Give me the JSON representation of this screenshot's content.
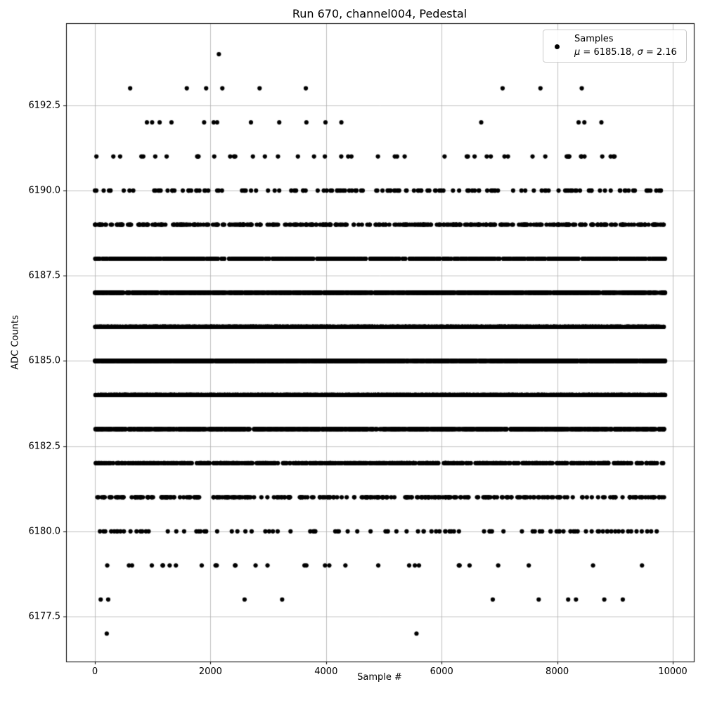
{
  "figure": {
    "title": "Run 670, channel004, Pedestal"
  },
  "axes": {
    "xlabel": "Sample #",
    "ylabel": "ADC Counts"
  },
  "legend": {
    "label": "Samples",
    "mu_symbol": "μ",
    "mu_text": " = 6185.18, ",
    "sigma_symbol": "σ",
    "sigma_text": " = 2.16"
  },
  "chart_data": {
    "type": "scatter",
    "title": "Run 670, channel004, Pedestal",
    "xlabel": "Sample #",
    "ylabel": "ADC Counts",
    "legend_label": "Samples",
    "stats_label": "μ = 6185.18, σ = 2.16",
    "mean": 6185.18,
    "std": 2.16,
    "legend_position": "upper right",
    "grid": true,
    "grid_color": "#b0b0b0",
    "marker_color": "#000000",
    "marker_radius": 3.1,
    "xlim": [
      -499,
      10365
    ],
    "ylim": [
      6176.18,
      6194.91
    ],
    "x_ticks": [
      0,
      2000,
      4000,
      6000,
      8000,
      10000
    ],
    "x_tick_labels": [
      "0",
      "2000",
      "4000",
      "6000",
      "8000",
      "10000"
    ],
    "y_ticks": [
      6177.5,
      6180.0,
      6182.5,
      6185.0,
      6187.5,
      6190.0,
      6192.5
    ],
    "y_tick_labels": [
      "6177.5",
      "6180.0",
      "6182.5",
      "6185.0",
      "6187.5",
      "6190.0",
      "6192.5"
    ],
    "sample_range": [
      0,
      9870
    ],
    "levels": [
      {
        "adc": 6194,
        "samples": [
          2145
        ]
      },
      {
        "adc": 6193,
        "samples": [
          610,
          1590,
          1925,
          2205,
          2850,
          3650,
          7055,
          7710,
          8425
        ]
      },
      {
        "adc": 6192,
        "samples": [
          900,
          990,
          1120,
          1325,
          1890,
          2055,
          2115,
          2700,
          3190,
          3660,
          3990,
          4265,
          6685,
          8370,
          8470,
          8765
        ]
      },
      {
        "adc": 6191,
        "count": 48
      },
      {
        "adc": 6190,
        "count": 152
      },
      {
        "adc": 6189,
        "count": 380
      },
      {
        "adc": 6188,
        "count": 775
      },
      {
        "adc": 6187,
        "count": 1270
      },
      {
        "adc": 6186,
        "count": 1685
      },
      {
        "adc": 6185,
        "count": 1805
      },
      {
        "adc": 6184,
        "count": 1560
      },
      {
        "adc": 6183,
        "count": 1090
      },
      {
        "adc": 6182,
        "count": 615
      },
      {
        "adc": 6181,
        "count": 280
      },
      {
        "adc": 6180,
        "count": 103
      },
      {
        "adc": 6179,
        "count": 31
      },
      {
        "adc": 6178,
        "samples": [
          100,
          230,
          2590,
          3240,
          6885,
          7680,
          8190,
          8325,
          8815,
          9135
        ]
      },
      {
        "adc": 6177,
        "samples": [
          205,
          5565
        ]
      }
    ]
  }
}
